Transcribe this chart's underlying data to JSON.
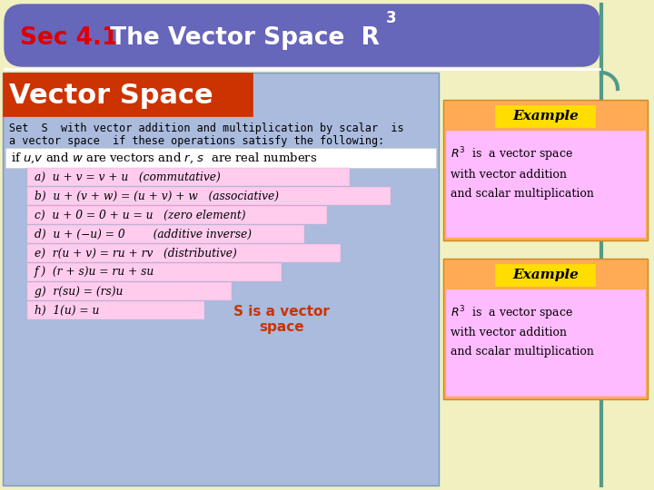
{
  "bg_color": "#f0f0c0",
  "title_box_color": "#6666bb",
  "title_text_sec": "Sec 4.1",
  "title_text_sec_color": "#dd0000",
  "title_text_rest": " The Vector Space  R",
  "title_text_rest_color": "#ffffff",
  "title_superscript": "3",
  "vector_space_box_color": "#cc3300",
  "vector_space_text": "Vector Space",
  "vector_space_text_color": "#ffffff",
  "main_box_color": "#aabbdd",
  "desc_text1": "Set  S  with vector addition and multiplication by scalar  is",
  "desc_text2": "a vector space  if these operations satisfy the following:",
  "desc_color": "#000000",
  "if_box_color": "#ffffff",
  "axiom_box_color": "#ffccee",
  "axioms_italic": [
    "a)  u + v = v + u   (commutative)",
    "b)  u + (v + w) = (u + v) + w   (associative)",
    "c)  u + 0 = 0 + u = u   (zero element)",
    "d)  u + (−u) = 0        (additive inverse)",
    "e)  r(u + v) = ru + rv   (distributive)",
    "f )  (r + s)u = ru + su",
    "g)  r(su) = (rs)u",
    "h)  1(u) = u"
  ],
  "conclusion_text": "S is a vector\nspace",
  "conclusion_color": "#cc3300",
  "example_box_color": "#ffaa55",
  "example_label_color": "#ffdd00",
  "example_content_box_color": "#ffbbff",
  "teal_color": "#559988",
  "white_color": "#ffffff"
}
